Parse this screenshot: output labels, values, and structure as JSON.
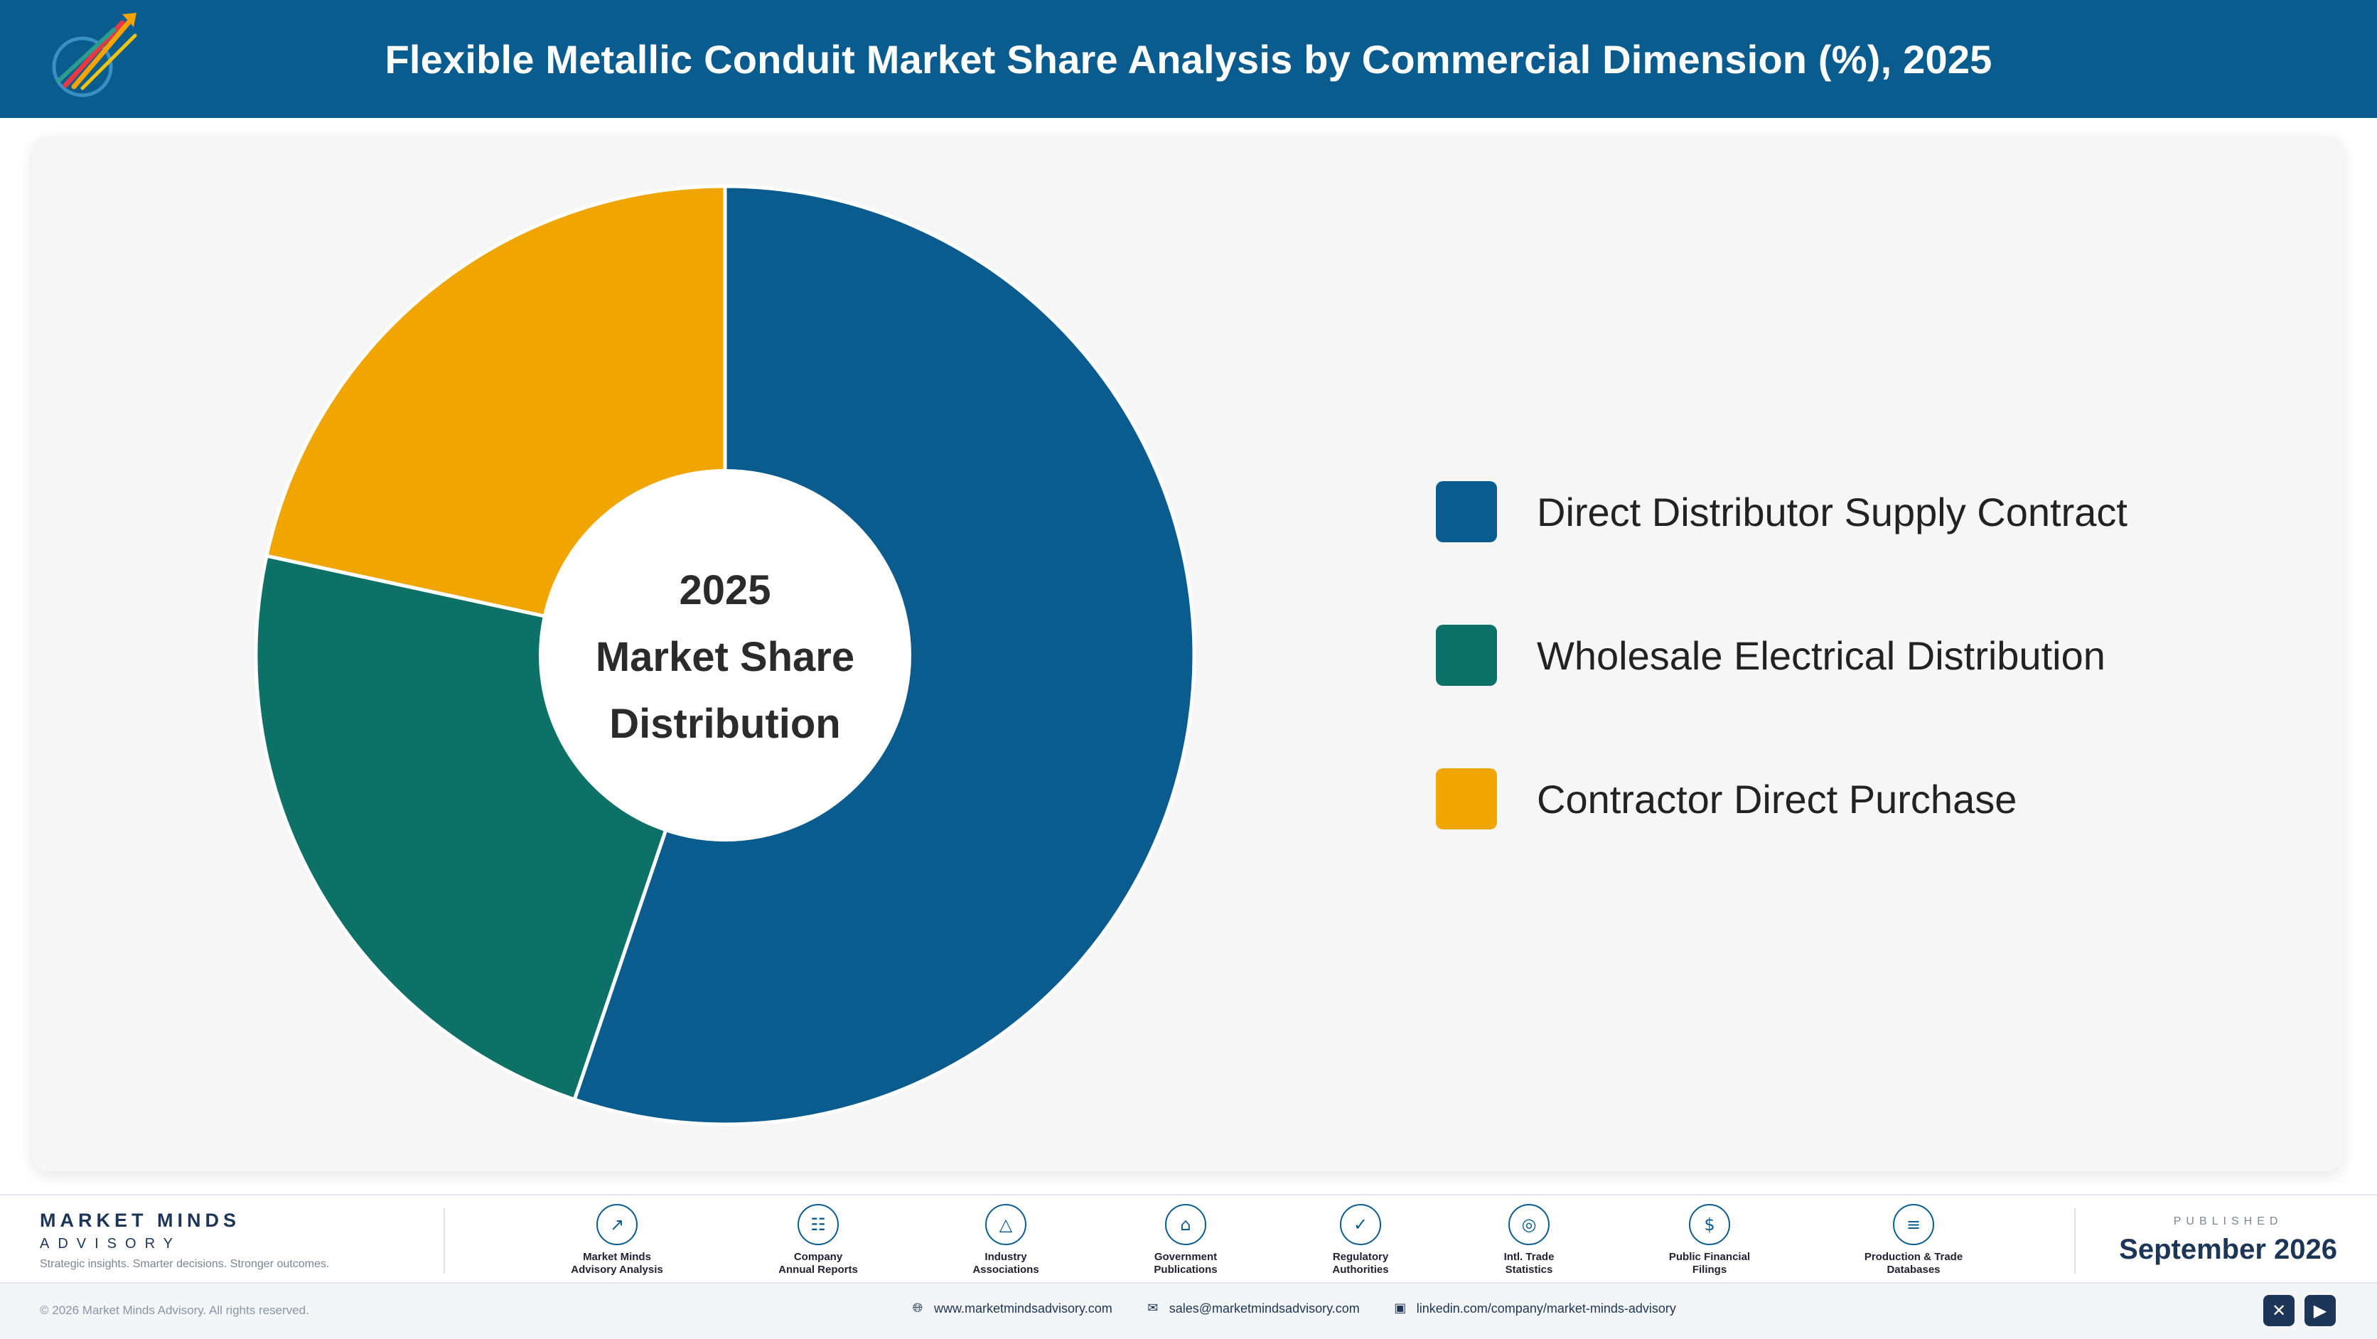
{
  "header": {
    "title": "Flexible Metallic Conduit Market Share Analysis by Commercial Dimension (%), 2025",
    "logo_icon": "rocket-logo-icon"
  },
  "chart_data": {
    "type": "pie",
    "style": "donut",
    "center_label": [
      "2025",
      "Market Share",
      "Distribution"
    ],
    "categories": [
      "Direct Distributor Supply Contract",
      "Wholesale Electrical Distribution",
      "Contractor Direct Purchase"
    ],
    "values": [
      55.2,
      23.2,
      21.6
    ],
    "colors": [
      "#0a5c8e",
      "#0d7167",
      "#f0a500"
    ],
    "legend_position": "right"
  },
  "footer": {
    "brand_name": "MARKET MINDS",
    "brand_sub": "ADVISORY",
    "tagline": "Strategic insights. Smarter decisions. Stronger outcomes.",
    "sources": [
      {
        "line1": "Market Minds",
        "line2": "Advisory Analysis",
        "icon": "trend-line-icon"
      },
      {
        "line1": "Company",
        "line2": "Annual Reports",
        "icon": "document-icon"
      },
      {
        "line1": "Industry",
        "line2": "Associations",
        "icon": "network-icon"
      },
      {
        "line1": "Government",
        "line2": "Publications",
        "icon": "government-building-icon"
      },
      {
        "line1": "Regulatory",
        "line2": "Authorities",
        "icon": "shield-check-icon"
      },
      {
        "line1": "Intl. Trade",
        "line2": "Statistics",
        "icon": "globe-icon"
      },
      {
        "line1": "Public Financial",
        "line2": "Filings",
        "icon": "dollar-coin-icon"
      },
      {
        "line1": "Production & Trade",
        "line2": "Databases",
        "icon": "database-icon"
      }
    ],
    "published_label": "PUBLISHED",
    "published_date": "September 2026"
  },
  "bottombar": {
    "copyright": "© 2026 Market Minds Advisory. All rights reserved.",
    "website": "www.marketmindsadvisory.com",
    "email": "sales@marketmindsadvisory.com",
    "linkedin": "linkedin.com/company/market-minds-advisory",
    "social_icons": [
      "x-icon",
      "youtube-icon"
    ]
  }
}
